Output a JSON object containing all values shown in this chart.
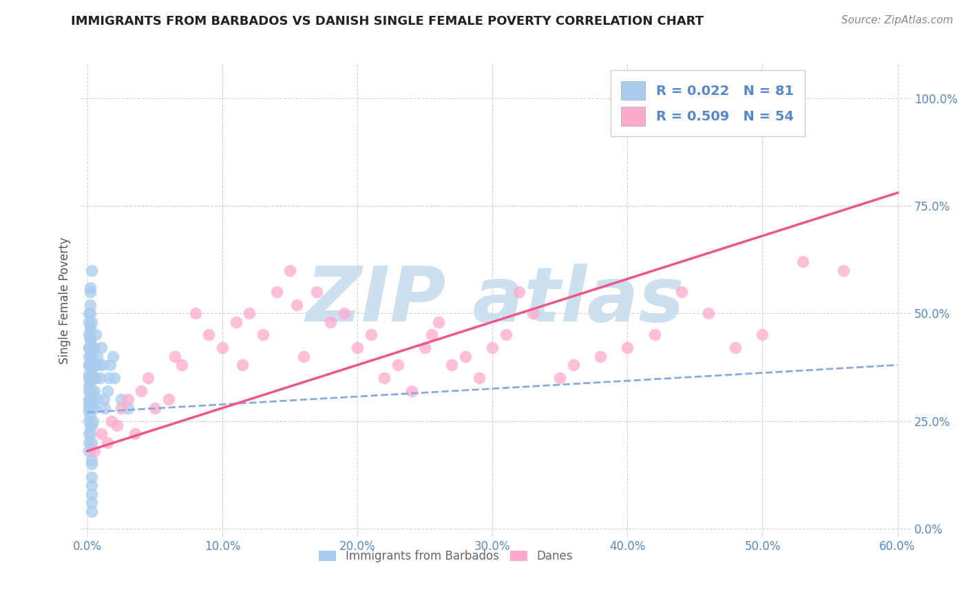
{
  "title": "IMMIGRANTS FROM BARBADOS VS DANISH SINGLE FEMALE POVERTY CORRELATION CHART",
  "source_text": "Source: ZipAtlas.com",
  "ylabel": "Single Female Poverty",
  "xlabel_barbados": "Immigrants from Barbados",
  "xlabel_danes": "Danes",
  "xlim": [
    -0.005,
    0.61
  ],
  "ylim": [
    -0.02,
    1.08
  ],
  "x_ticks": [
    0.0,
    0.1,
    0.2,
    0.3,
    0.4,
    0.5,
    0.6
  ],
  "x_tick_labels": [
    "0.0%",
    "10.0%",
    "20.0%",
    "30.0%",
    "40.0%",
    "50.0%",
    "60.0%"
  ],
  "y_ticks": [
    0.0,
    0.25,
    0.5,
    0.75,
    1.0
  ],
  "y_tick_labels": [
    "0.0%",
    "25.0%",
    "50.0%",
    "75.0%",
    "100.0%"
  ],
  "barbados_R": "0.022",
  "barbados_N": "81",
  "danes_R": "0.509",
  "danes_N": "54",
  "color_barbados": "#aaccee",
  "color_danes": "#ffaacc",
  "color_trend_barbados": "#88aadd",
  "color_trend_danes": "#ee5588",
  "watermark_color": "#cce0f0",
  "watermark_text": "ZIP atlas",
  "background_color": "#ffffff",
  "grid_color": "#cccccc",
  "legend_border_color": "#cccccc",
  "title_color": "#222222",
  "tick_color": "#5588cc",
  "barbados_x": [
    0.001,
    0.001,
    0.001,
    0.001,
    0.001,
    0.001,
    0.001,
    0.001,
    0.001,
    0.001,
    0.001,
    0.001,
    0.001,
    0.001,
    0.001,
    0.001,
    0.001,
    0.001,
    0.001,
    0.001,
    0.002,
    0.002,
    0.002,
    0.002,
    0.002,
    0.002,
    0.002,
    0.002,
    0.002,
    0.002,
    0.002,
    0.002,
    0.002,
    0.002,
    0.002,
    0.002,
    0.002,
    0.002,
    0.002,
    0.002,
    0.003,
    0.003,
    0.003,
    0.003,
    0.003,
    0.003,
    0.003,
    0.003,
    0.003,
    0.003,
    0.003,
    0.003,
    0.003,
    0.003,
    0.003,
    0.004,
    0.004,
    0.004,
    0.004,
    0.004,
    0.005,
    0.005,
    0.005,
    0.005,
    0.006,
    0.006,
    0.007,
    0.007,
    0.008,
    0.009,
    0.01,
    0.011,
    0.012,
    0.013,
    0.015,
    0.016,
    0.017,
    0.019,
    0.02,
    0.025,
    0.03
  ],
  "barbados_y": [
    0.42,
    0.38,
    0.35,
    0.32,
    0.28,
    0.45,
    0.4,
    0.36,
    0.3,
    0.48,
    0.25,
    0.22,
    0.2,
    0.18,
    0.5,
    0.33,
    0.38,
    0.27,
    0.42,
    0.29,
    0.35,
    0.44,
    0.55,
    0.52,
    0.47,
    0.4,
    0.24,
    0.32,
    0.28,
    0.46,
    0.38,
    0.3,
    0.22,
    0.26,
    0.34,
    0.42,
    0.38,
    0.44,
    0.5,
    0.56,
    0.6,
    0.48,
    0.36,
    0.32,
    0.28,
    0.24,
    0.2,
    0.16,
    0.4,
    0.15,
    0.12,
    0.1,
    0.08,
    0.06,
    0.04,
    0.38,
    0.42,
    0.35,
    0.3,
    0.25,
    0.42,
    0.38,
    0.32,
    0.28,
    0.45,
    0.35,
    0.4,
    0.3,
    0.38,
    0.35,
    0.42,
    0.38,
    0.3,
    0.28,
    0.32,
    0.35,
    0.38,
    0.4,
    0.35,
    0.3,
    0.28
  ],
  "danes_x": [
    0.005,
    0.01,
    0.015,
    0.018,
    0.022,
    0.025,
    0.03,
    0.035,
    0.04,
    0.045,
    0.05,
    0.06,
    0.065,
    0.07,
    0.08,
    0.09,
    0.1,
    0.11,
    0.115,
    0.12,
    0.13,
    0.14,
    0.15,
    0.155,
    0.16,
    0.17,
    0.18,
    0.19,
    0.2,
    0.21,
    0.22,
    0.23,
    0.24,
    0.25,
    0.255,
    0.26,
    0.27,
    0.28,
    0.29,
    0.3,
    0.31,
    0.32,
    0.33,
    0.35,
    0.36,
    0.38,
    0.4,
    0.42,
    0.44,
    0.46,
    0.48,
    0.5,
    0.53,
    0.56
  ],
  "danes_y": [
    0.18,
    0.22,
    0.2,
    0.25,
    0.24,
    0.28,
    0.3,
    0.22,
    0.32,
    0.35,
    0.28,
    0.3,
    0.4,
    0.38,
    0.5,
    0.45,
    0.42,
    0.48,
    0.38,
    0.5,
    0.45,
    0.55,
    0.6,
    0.52,
    0.4,
    0.55,
    0.48,
    0.5,
    0.42,
    0.45,
    0.35,
    0.38,
    0.32,
    0.42,
    0.45,
    0.48,
    0.38,
    0.4,
    0.35,
    0.42,
    0.45,
    0.55,
    0.5,
    0.35,
    0.38,
    0.4,
    0.42,
    0.45,
    0.55,
    0.5,
    0.42,
    0.45,
    0.62,
    0.6
  ],
  "trend_barbados_y0": 0.27,
  "trend_barbados_y1": 0.38,
  "trend_danes_y0": 0.18,
  "trend_danes_y1": 0.78
}
